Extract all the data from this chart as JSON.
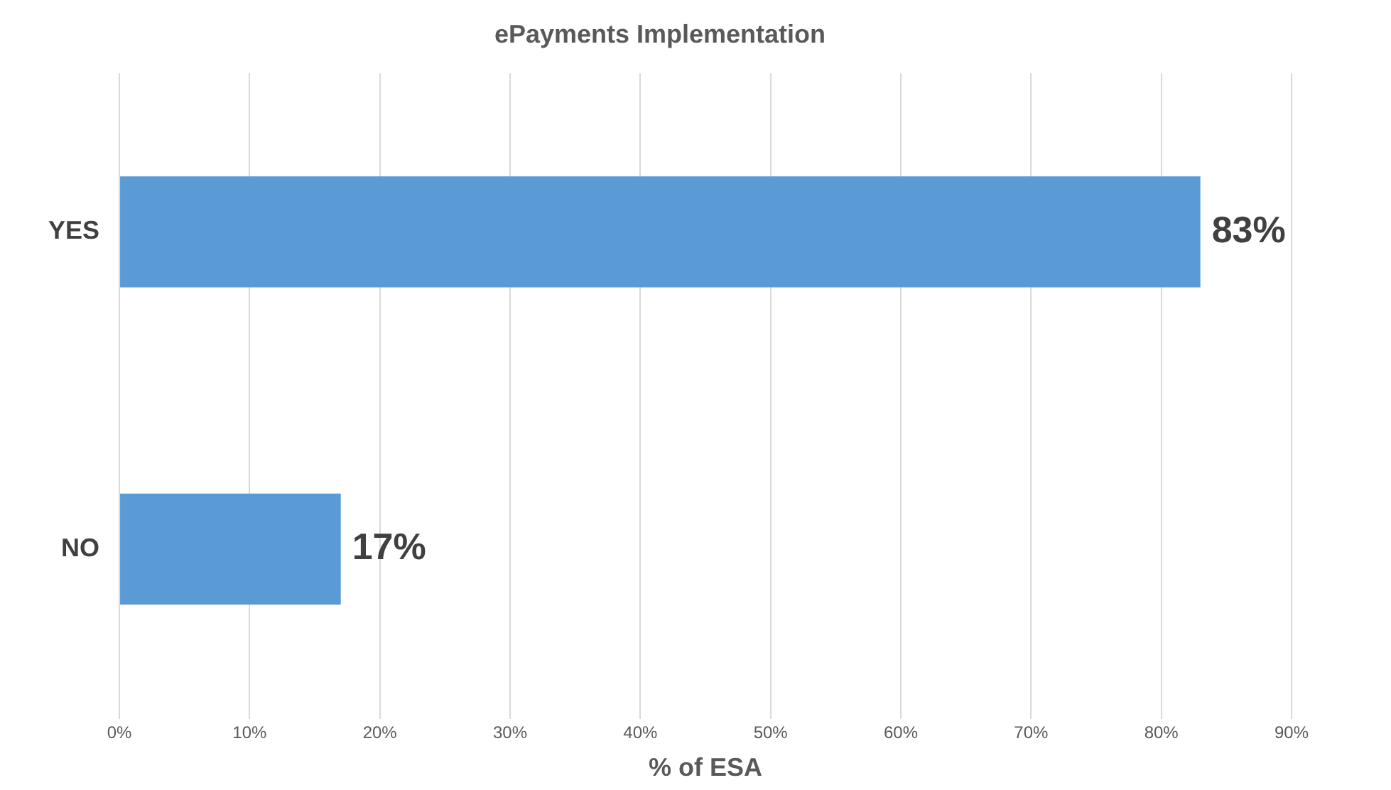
{
  "chart_data": {
    "type": "bar",
    "orientation": "horizontal",
    "title": "ePayments Implementation",
    "xlabel": "% of ESA",
    "categories": [
      "YES",
      "NO"
    ],
    "values": [
      83,
      17
    ],
    "color": "#5b9bd5",
    "value_labels": [
      "83%",
      "17%"
    ],
    "xlim": [
      0,
      90
    ],
    "xticks": [
      {
        "value": 0,
        "label": "0%"
      },
      {
        "value": 10,
        "label": "10%"
      },
      {
        "value": 20,
        "label": "20%"
      },
      {
        "value": 30,
        "label": "30%"
      },
      {
        "value": 40,
        "label": "40%"
      },
      {
        "value": 50,
        "label": "50%"
      },
      {
        "value": 60,
        "label": "60%"
      },
      {
        "value": 70,
        "label": "70%"
      },
      {
        "value": 80,
        "label": "80%"
      },
      {
        "value": 90,
        "label": "90%"
      }
    ],
    "grid": "x",
    "legend": false
  }
}
